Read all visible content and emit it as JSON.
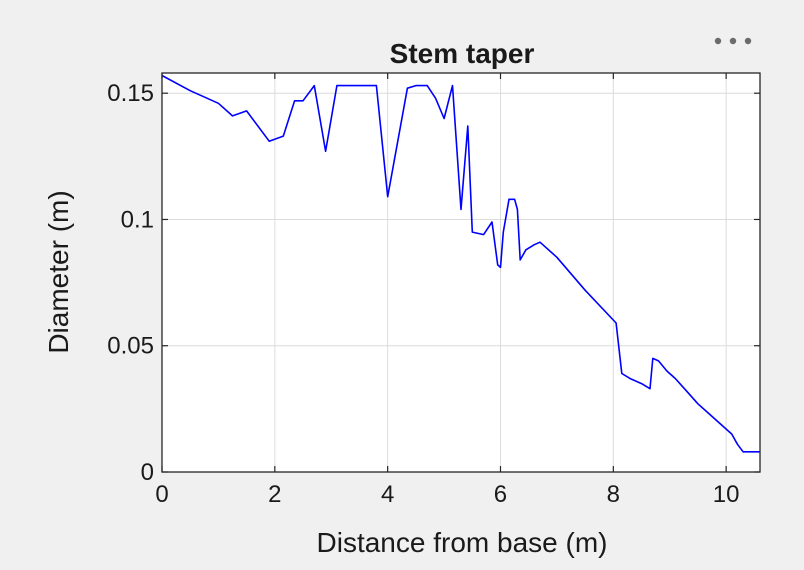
{
  "chart_data": {
    "type": "line",
    "title": "Stem taper",
    "xlabel": "Distance from base (m)",
    "ylabel": "Diameter (m)",
    "xlim": [
      0,
      10.6
    ],
    "ylim": [
      0,
      0.158
    ],
    "grid": true,
    "x_ticks": [
      0,
      2,
      4,
      6,
      8,
      10
    ],
    "x_tick_labels": [
      "0",
      "2",
      "4",
      "6",
      "8",
      "10"
    ],
    "y_ticks": [
      0,
      0.05,
      0.1,
      0.15
    ],
    "y_tick_labels": [
      "0",
      "0.05",
      "0.1",
      "0.15"
    ],
    "series": [
      {
        "color": "#0000ff",
        "x": [
          0,
          0.5,
          1.0,
          1.25,
          1.5,
          1.9,
          2.15,
          2.35,
          2.5,
          2.7,
          2.9,
          3.1,
          3.4,
          3.8,
          4.0,
          4.35,
          4.5,
          4.7,
          4.85,
          5.0,
          5.15,
          5.3,
          5.42,
          5.5,
          5.7,
          5.85,
          5.95,
          6.0,
          6.05,
          6.15,
          6.25,
          6.3,
          6.35,
          6.45,
          6.6,
          6.7,
          7.0,
          7.5,
          8.05,
          8.15,
          8.3,
          8.5,
          8.65,
          8.7,
          8.8,
          8.95,
          9.1,
          9.3,
          9.5,
          9.7,
          9.9,
          10.1,
          10.2,
          10.3,
          10.35,
          10.6
        ],
        "y": [
          0.157,
          0.151,
          0.146,
          0.141,
          0.143,
          0.131,
          0.133,
          0.147,
          0.147,
          0.153,
          0.127,
          0.153,
          0.153,
          0.153,
          0.109,
          0.152,
          0.153,
          0.153,
          0.148,
          0.14,
          0.153,
          0.104,
          0.137,
          0.095,
          0.094,
          0.099,
          0.082,
          0.081,
          0.095,
          0.108,
          0.108,
          0.104,
          0.084,
          0.088,
          0.09,
          0.091,
          0.085,
          0.072,
          0.059,
          0.039,
          0.037,
          0.035,
          0.033,
          0.045,
          0.044,
          0.04,
          0.037,
          0.032,
          0.027,
          0.023,
          0.019,
          0.015,
          0.011,
          0.008,
          0.008,
          0.008
        ]
      }
    ]
  },
  "toolbar": {
    "menu_icon": "more-horizontal-icon"
  }
}
